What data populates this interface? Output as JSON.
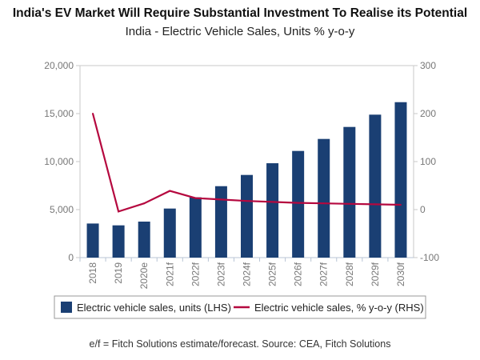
{
  "title": "India's EV Market Will Require Substantial Investment To Realise its Potential",
  "subtitle": "India - Electric Vehicle Sales, Units % y-o-y",
  "footer": "e/f = Fitch Solutions estimate/forecast. Source: CEA, Fitch Solutions",
  "chart_data": {
    "type": "bar+line",
    "categories": [
      "2018",
      "2019",
      "2020e",
      "2021f",
      "2022f",
      "2023f",
      "2024f",
      "2025f",
      "2026f",
      "2027f",
      "2028f",
      "2029f",
      "2030f"
    ],
    "series": [
      {
        "name": "Electric vehicle sales, units (LHS)",
        "type": "bar",
        "axis": "left",
        "color": "#1a3f73",
        "values": [
          3550,
          3360,
          3750,
          5110,
          6280,
          7440,
          8610,
          9830,
          11110,
          12360,
          13610,
          14890,
          16190
        ]
      },
      {
        "name": "Electric vehicle sales, % y-o-y (RHS)",
        "type": "line",
        "axis": "right",
        "color": "#b5083f",
        "values": [
          200,
          -4,
          13,
          39,
          24,
          21,
          18,
          16,
          14,
          13,
          12,
          11,
          10
        ]
      }
    ],
    "left_axis": {
      "range": [
        0,
        20000
      ],
      "ticks": [
        "0",
        "5,000",
        "10,000",
        "15,000",
        "20,000"
      ],
      "tick_values": [
        0,
        5000,
        10000,
        15000,
        20000
      ]
    },
    "right_axis": {
      "range": [
        -100,
        300
      ],
      "ticks": [
        "-100",
        "0",
        "100",
        "200",
        "300"
      ],
      "tick_values": [
        -100,
        0,
        100,
        200,
        300
      ]
    },
    "grid": false,
    "legend": "bottom"
  }
}
